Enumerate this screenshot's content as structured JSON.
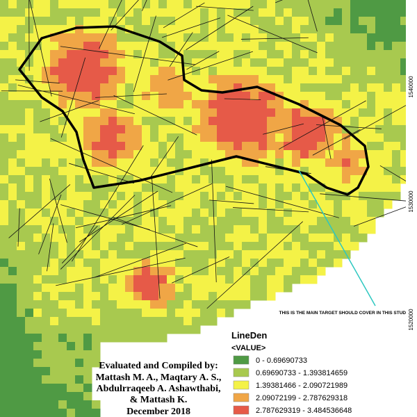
{
  "legend": {
    "title": "LineDen",
    "field": "<VALUE>",
    "classes": [
      {
        "label": "0 - 0.69690733",
        "color": "#4f9a44"
      },
      {
        "label": "0.69690733 - 1.393814659",
        "color": "#a8c94f"
      },
      {
        "label": "1.39381466 - 2.090721989",
        "color": "#f4f247"
      },
      {
        "label": "2.09072199 - 2.787629318",
        "color": "#f0a646"
      },
      {
        "label": "2.787629319 - 3.484536648",
        "color": "#e65a48"
      }
    ]
  },
  "annotation": "THIS IS THE MAIN TARGET SHOULD COVER IN THIS STUDY",
  "credits": [
    "Evaluated and Compiled by:",
    "Mattash M. A., Maqtary A.  S.,",
    "Abdulrraqeeb A. Ashawthabi,",
    "& Mattash K.",
    "December  2018"
  ],
  "coordinates": [
    "1540000",
    "1530000",
    "1520000"
  ]
}
